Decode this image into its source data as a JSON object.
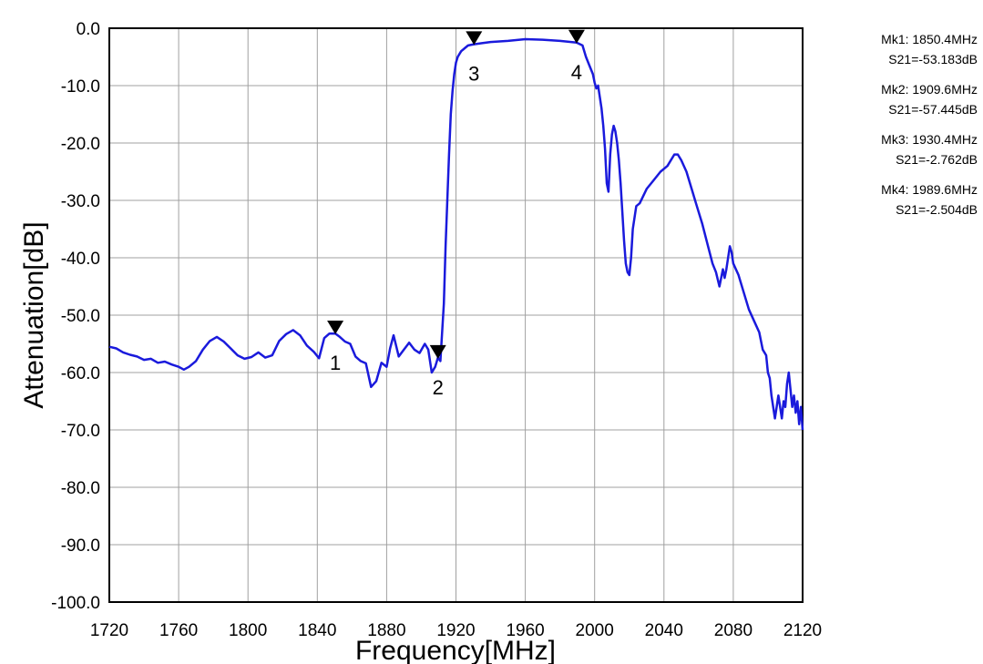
{
  "chart_data": {
    "type": "line",
    "title": "",
    "xlabel": "Frequency[MHz]",
    "ylabel": "Attenuation[dB]",
    "xlim": [
      1720,
      2120
    ],
    "ylim": [
      -100,
      0
    ],
    "x_ticks": [
      1720,
      1760,
      1800,
      1840,
      1880,
      1920,
      1960,
      2000,
      2040,
      2080,
      2120
    ],
    "x_tick_labels": [
      "1720",
      "1760",
      "1800",
      "1840",
      "1880",
      "1920",
      "1960",
      "2000",
      "2040",
      "2080",
      "2120"
    ],
    "y_ticks": [
      0,
      -10,
      -20,
      -30,
      -40,
      -50,
      -60,
      -70,
      -80,
      -90,
      -100
    ],
    "y_tick_labels": [
      "0.0",
      "-10.0",
      "-20.0",
      "-30.0",
      "-40.0",
      "-50.0",
      "-60.0",
      "-70.0",
      "-80.0",
      "-90.0",
      "-100.0"
    ],
    "grid": true,
    "line_color": "#1a1adc",
    "grid_color": "#a0a0a0",
    "series": [
      {
        "x": [
          1720,
          1724,
          1728,
          1732,
          1736,
          1740,
          1744,
          1748,
          1752,
          1756,
          1760,
          1763,
          1766,
          1770,
          1774,
          1778,
          1782,
          1786,
          1790,
          1794,
          1798,
          1802,
          1806,
          1810,
          1814,
          1818,
          1822,
          1826,
          1830,
          1834,
          1838,
          1841,
          1844,
          1847,
          1850.4,
          1853,
          1856,
          1859,
          1862,
          1865,
          1868,
          1871,
          1874,
          1877,
          1880,
          1882,
          1884,
          1887,
          1890,
          1893,
          1896,
          1899,
          1902,
          1904,
          1906,
          1908,
          1909.6,
          1911,
          1913,
          1914,
          1915,
          1916,
          1917,
          1918,
          1919,
          1920,
          1921,
          1923,
          1925,
          1927,
          1930.4,
          1935,
          1940,
          1950,
          1960,
          1970,
          1980,
          1989.6,
          1993,
          1995,
          1997,
          1999,
          2000,
          2001,
          2002,
          2003,
          2004,
          2005,
          2006,
          2007,
          2008,
          2009,
          2010,
          2011,
          2012,
          2013,
          2014,
          2015,
          2016,
          2017,
          2018,
          2019,
          2020,
          2021,
          2022,
          2024,
          2026,
          2030,
          2034,
          2038,
          2042,
          2046,
          2048,
          2050,
          2053,
          2056,
          2059,
          2062,
          2065,
          2068,
          2070,
          2072,
          2073,
          2074,
          2075,
          2076,
          2077,
          2078,
          2079,
          2080,
          2083,
          2086,
          2089,
          2092,
          2095,
          2097,
          2099,
          2100,
          2101,
          2102,
          2103,
          2104,
          2105,
          2106,
          2107,
          2108,
          2109,
          2110,
          2111,
          2112,
          2113,
          2114,
          2115,
          2116,
          2117,
          2118,
          2119,
          2120
        ],
        "y": [
          -55.5,
          -55.8,
          -56.5,
          -56.9,
          -57.2,
          -57.8,
          -57.6,
          -58.3,
          -58.1,
          -58.6,
          -59.0,
          -59.5,
          -59.0,
          -58.0,
          -56.0,
          -54.5,
          -53.8,
          -54.6,
          -55.8,
          -57.0,
          -57.6,
          -57.3,
          -56.5,
          -57.4,
          -57.0,
          -54.5,
          -53.3,
          -52.6,
          -53.5,
          -55.3,
          -56.4,
          -57.5,
          -54.0,
          -53.2,
          -53.2,
          -53.8,
          -54.6,
          -55.0,
          -57.2,
          -58.0,
          -58.4,
          -62.5,
          -61.5,
          -58.3,
          -59.0,
          -55.8,
          -53.5,
          -57.2,
          -56.0,
          -54.8,
          -56.0,
          -56.6,
          -55.0,
          -56.0,
          -60.0,
          -59.0,
          -57.4,
          -58.0,
          -48.0,
          -38.0,
          -30.0,
          -22.0,
          -15.0,
          -11.0,
          -8.0,
          -6.0,
          -5.0,
          -4.0,
          -3.5,
          -3.0,
          -2.8,
          -2.6,
          -2.4,
          -2.2,
          -1.9,
          -2.0,
          -2.2,
          -2.5,
          -3.0,
          -5.0,
          -6.5,
          -8.0,
          -9.5,
          -10.5,
          -10.0,
          -12.0,
          -14.0,
          -17.0,
          -21.0,
          -27.0,
          -28.5,
          -22.0,
          -18.5,
          -17.0,
          -18.0,
          -20.0,
          -23.0,
          -27.0,
          -32.0,
          -37.0,
          -41.0,
          -42.5,
          -43.0,
          -40.0,
          -35.0,
          -31.0,
          -30.5,
          -28.0,
          -26.5,
          -25.0,
          -24.0,
          -22.0,
          -22.0,
          -23.0,
          -25.0,
          -28.0,
          -31.0,
          -34.0,
          -37.5,
          -41.0,
          -42.5,
          -45.0,
          -43.5,
          -42.0,
          -43.5,
          -42.0,
          -40.0,
          -38.0,
          -39.0,
          -41.0,
          -43.0,
          -46.0,
          -49.0,
          -51.0,
          -53.0,
          -56.0,
          -57.0,
          -60.0,
          -61.0,
          -64.0,
          -66.0,
          -68.0,
          -66.0,
          -64.0,
          -66.0,
          -68.0,
          -65.0,
          -66.0,
          -62.0,
          -60.0,
          -63.0,
          -66.0,
          -64.0,
          -67.0,
          -65.0,
          -69.0,
          -66.0,
          -70.0
        ]
      }
    ],
    "markers": [
      {
        "id": "1",
        "x": 1850.4,
        "y": -53.183
      },
      {
        "id": "2",
        "x": 1909.6,
        "y": -57.445
      },
      {
        "id": "3",
        "x": 1930.4,
        "y": -2.762
      },
      {
        "id": "4",
        "x": 1989.6,
        "y": -2.504
      }
    ]
  },
  "legend": {
    "entries": [
      {
        "freq": "Mk1: 1850.4MHz",
        "value": "S21=-53.183dB"
      },
      {
        "freq": "Mk2: 1909.6MHz",
        "value": "S21=-57.445dB"
      },
      {
        "freq": "Mk3: 1930.4MHz",
        "value": "S21=-2.762dB"
      },
      {
        "freq": "Mk4: 1989.6MHz",
        "value": "S21=-2.504dB"
      }
    ]
  }
}
